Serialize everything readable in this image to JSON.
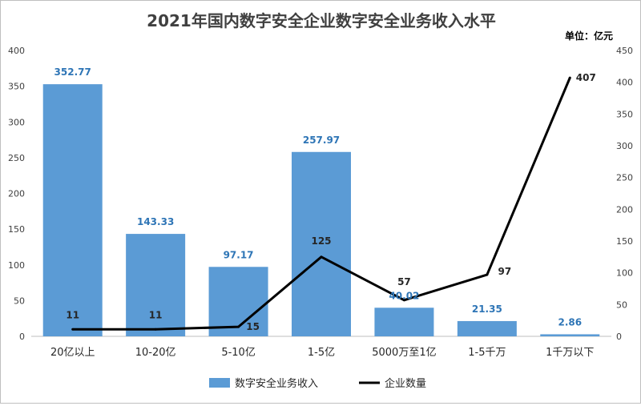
{
  "chart_data": {
    "type": "bar",
    "title": "2021年国内数字安全企业数字安全业务收入水平",
    "unit_label": "单位：亿元",
    "categories": [
      "20亿以上",
      "10-20亿",
      "5-10亿",
      "1-5亿",
      "5000万至1亿",
      "1-5千万",
      "1千万以下"
    ],
    "series": [
      {
        "name": "数字安全业务收入",
        "type": "bar",
        "axis": "left",
        "color": "#5b9bd5",
        "label_color": "#2e75b6",
        "values": [
          352.77,
          143.33,
          97.17,
          257.97,
          40.02,
          21.35,
          2.86
        ],
        "labels": [
          "352.77",
          "143.33",
          "97.17",
          "257.97",
          "40.02",
          "21.35",
          "2.86"
        ]
      },
      {
        "name": "企业数量",
        "type": "line",
        "axis": "right",
        "color": "#000000",
        "values": [
          11,
          11,
          15,
          125,
          57,
          97,
          407
        ],
        "labels": [
          "11",
          "11",
          "15",
          "125",
          "57",
          "97",
          "407"
        ]
      }
    ],
    "ylim_left": [
      0,
      400
    ],
    "yticks_left": [
      0,
      50,
      100,
      150,
      200,
      250,
      300,
      350,
      400
    ],
    "ylim_right": [
      0,
      450
    ],
    "yticks_right": [
      0,
      50,
      100,
      150,
      200,
      250,
      300,
      350,
      400,
      450
    ],
    "grid": false,
    "legend_position": "bottom"
  }
}
